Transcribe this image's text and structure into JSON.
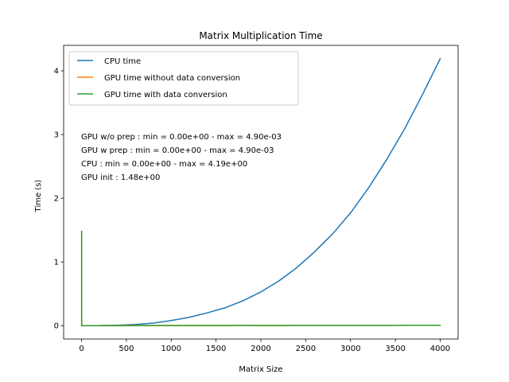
{
  "chart_data": {
    "type": "line",
    "title": "Matrix Multiplication Time",
    "xlabel": "Matrix Size",
    "ylabel": "Time (s)",
    "xlim": [
      -200,
      4200
    ],
    "ylim": [
      -0.21,
      4.4
    ],
    "xticks": [
      0,
      500,
      1000,
      1500,
      2000,
      2500,
      3000,
      3500,
      4000
    ],
    "yticks": [
      0,
      1,
      2,
      3,
      4
    ],
    "grid": false,
    "legend_position": "top-left",
    "series": [
      {
        "name": "CPU time",
        "color": "#1f77b4",
        "x": [
          1,
          200,
          400,
          600,
          800,
          1000,
          1200,
          1400,
          1600,
          1800,
          2000,
          2200,
          2400,
          2600,
          2800,
          3000,
          3200,
          3400,
          3600,
          3800,
          4000
        ],
        "y": [
          0.0,
          0.001,
          0.006,
          0.018,
          0.04,
          0.08,
          0.13,
          0.2,
          0.28,
          0.39,
          0.53,
          0.7,
          0.91,
          1.16,
          1.44,
          1.77,
          2.16,
          2.6,
          3.08,
          3.62,
          4.19
        ]
      },
      {
        "name": "GPU time without data conversion",
        "color": "#ff7f0e",
        "x": [
          1,
          1,
          200,
          400,
          600,
          800,
          1000,
          1200,
          1400,
          1600,
          1800,
          2000,
          2200,
          2400,
          2600,
          2800,
          3000,
          3200,
          3400,
          3600,
          3800,
          4000
        ],
        "y": [
          1.48,
          0.0,
          0.0,
          0.001,
          0.002,
          0.002,
          0.003,
          0.002,
          0.003,
          0.003,
          0.004,
          0.003,
          0.003,
          0.004,
          0.004,
          0.004,
          0.004,
          0.004,
          0.004,
          0.005,
          0.005,
          0.0049
        ]
      },
      {
        "name": "GPU time with data conversion",
        "color": "#2ca02c",
        "x": [
          1,
          1,
          200,
          400,
          600,
          800,
          1000,
          1200,
          1400,
          1600,
          1800,
          2000,
          2200,
          2400,
          2600,
          2800,
          3000,
          3200,
          3400,
          3600,
          3800,
          4000
        ],
        "y": [
          1.48,
          0.0,
          0.0,
          0.001,
          0.002,
          0.002,
          0.003,
          0.002,
          0.003,
          0.003,
          0.004,
          0.003,
          0.003,
          0.004,
          0.004,
          0.004,
          0.004,
          0.004,
          0.004,
          0.005,
          0.005,
          0.0049
        ]
      }
    ],
    "annotations": [
      "GPU w/o prep : min = 0.00e+00 - max = 4.90e-03",
      "GPU w prep : min = 0.00e+00 - max = 4.90e-03",
      "CPU : min = 0.00e+00 - max = 4.19e+00",
      "GPU init : 1.48e+00"
    ]
  }
}
